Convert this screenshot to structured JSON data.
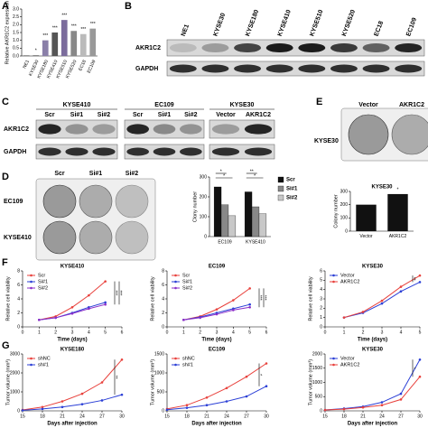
{
  "panel_letters": [
    "A",
    "B",
    "C",
    "D",
    "E",
    "F",
    "G"
  ],
  "blot_b": {
    "lanes": [
      "NE1",
      "KYSE30",
      "KYSE180",
      "KYSE410",
      "KYSE510",
      "KYSE520",
      "EC18",
      "EC109"
    ],
    "rows": [
      "AKR1C2",
      "GAPDH"
    ]
  },
  "blot_c": {
    "groups": [
      {
        "name": "KYSE410",
        "lanes": [
          "Scr",
          "Si#1",
          "Si#2"
        ]
      },
      {
        "name": "EC109",
        "lanes": [
          "Scr",
          "Si#1",
          "Si#2"
        ]
      },
      {
        "name": "KYSE30",
        "lanes": [
          "Vector",
          "AKR1C2"
        ]
      }
    ],
    "rows": [
      "AKR1C2",
      "GAPDH"
    ]
  },
  "colony_d": {
    "columns": [
      "Scr",
      "Si#1",
      "Si#2"
    ],
    "rows": [
      "EC109",
      "KYSE410"
    ]
  },
  "colony_e": {
    "columns": [
      "Vector",
      "AKR1C2"
    ],
    "row": "KYSE30"
  },
  "chart_data": [
    {
      "type": "bar",
      "ylabel": "Relative AKR1C2 expression",
      "categories": [
        "NE1",
        "KYSE30",
        "KYSE180",
        "KYSE410",
        "KYSE510",
        "KYSE520",
        "EC18",
        "EC109"
      ],
      "values": [
        0.02,
        0.05,
        1.0,
        1.5,
        2.3,
        1.6,
        1.4,
        1.75
      ],
      "colors": [
        "#111111",
        "#777777",
        "#8a7fa8",
        "#555555",
        "#7b6c9c",
        "#888888",
        "#bbbbbb",
        "#999999"
      ],
      "annotations": [
        null,
        "*",
        "***",
        "***",
        "***",
        "***",
        "***",
        "***"
      ],
      "ylim": [
        0,
        3
      ],
      "yticks": [
        {
          "value": 0,
          "label": "0.0"
        },
        0.5,
        {
          "value": 1,
          "label": "1.0"
        },
        1.5,
        {
          "value": 2,
          "label": "2.0"
        },
        2.5,
        {
          "value": 3,
          "label": "3.0"
        }
      ]
    },
    {
      "type": "groupbar",
      "ylabel": "Clony number",
      "categories": [
        "EC109",
        "KYSE410"
      ],
      "series": [
        {
          "name": "Scr",
          "color": "#111111",
          "values": [
            250,
            225
          ]
        },
        {
          "name": "Si#1",
          "color": "#888888",
          "values": [
            160,
            150
          ]
        },
        {
          "name": "Si#2",
          "color": "#c8c8c8",
          "values": [
            105,
            115
          ]
        }
      ],
      "annotations": [
        "*",
        "*",
        "**",
        "*"
      ],
      "ylim": [
        0,
        300
      ],
      "yticks": [
        0,
        100,
        200,
        300
      ]
    },
    {
      "type": "bar",
      "title": "KYSE30",
      "ylabel": "Colony number",
      "categories": [
        "Vector",
        "AKR1C2"
      ],
      "values": [
        200,
        280
      ],
      "colors": [
        "#111111",
        "#111111"
      ],
      "annotations": [
        null,
        "*"
      ],
      "ylim": [
        0,
        300
      ],
      "yticks": [
        0,
        100,
        200,
        300
      ]
    },
    {
      "type": "line",
      "title": "KYSE410",
      "xlabel": "Time (days)",
      "ylabel": "Relative cell viability",
      "x": [
        1,
        2,
        3,
        4,
        5
      ],
      "series": [
        {
          "name": "Scr",
          "color": "#e8413c",
          "values": [
            1,
            1.5,
            2.8,
            4.5,
            6.5
          ]
        },
        {
          "name": "Si#1",
          "color": "#2b3fd6",
          "values": [
            1,
            1.3,
            2,
            2.8,
            3.5
          ]
        },
        {
          "name": "Si#2",
          "color": "#8b2fc9",
          "values": [
            1,
            1.3,
            1.9,
            2.6,
            3.2
          ]
        }
      ],
      "annotations": [
        "***",
        "***"
      ],
      "xlim": [
        0,
        6
      ],
      "xticks": [
        0,
        1,
        2,
        3,
        4,
        5,
        6
      ],
      "ylim": [
        0,
        8
      ],
      "yticks": [
        0,
        2,
        4,
        6,
        8
      ]
    },
    {
      "type": "line",
      "title": "EC109",
      "xlabel": "Time (days)",
      "ylabel": "Relative cell viability",
      "x": [
        1,
        2,
        3,
        4,
        5
      ],
      "series": [
        {
          "name": "Scr",
          "color": "#e8413c",
          "values": [
            1,
            1.5,
            2.5,
            3.8,
            5.5
          ]
        },
        {
          "name": "Si#1",
          "color": "#2b3fd6",
          "values": [
            1,
            1.4,
            2,
            2.6,
            3.2
          ]
        },
        {
          "name": "Si#2",
          "color": "#8b2fc9",
          "values": [
            1,
            1.3,
            1.8,
            2.4,
            2.8
          ]
        }
      ],
      "annotations": [
        "***",
        "***"
      ],
      "xlim": [
        0,
        6
      ],
      "xticks": [
        0,
        1,
        2,
        3,
        4,
        5,
        6
      ],
      "ylim": [
        0,
        8
      ],
      "yticks": [
        0,
        2,
        4,
        6,
        8
      ]
    },
    {
      "type": "line",
      "title": "KYSE30",
      "xlabel": "Time (days)",
      "ylabel": "Relative cell viability",
      "x": [
        1,
        2,
        3,
        4,
        5
      ],
      "series": [
        {
          "name": "Vector",
          "color": "#2b3fd6",
          "values": [
            1,
            1.5,
            2.5,
            3.8,
            4.8
          ]
        },
        {
          "name": "AKR1C2",
          "color": "#e8413c",
          "values": [
            1,
            1.6,
            2.8,
            4.3,
            5.5
          ]
        }
      ],
      "annotations": [
        "**"
      ],
      "xlim": [
        0,
        5
      ],
      "xticks": [
        0,
        1,
        2,
        3,
        4,
        5
      ],
      "ylim": [
        0,
        6
      ],
      "yticks": [
        0,
        1,
        2,
        3,
        4,
        5,
        6
      ]
    },
    {
      "type": "line",
      "title": "KYSE180",
      "xlabel": "Days after injection",
      "ylabel": "Tumor volume (mm³)",
      "x": [
        15,
        18,
        21,
        24,
        27,
        30
      ],
      "series": [
        {
          "name": "shNC",
          "color": "#e8413c",
          "values": [
            50,
            200,
            500,
            900,
            1500,
            2700
          ]
        },
        {
          "name": "sh#1",
          "color": "#2b3fd6",
          "values": [
            30,
            100,
            200,
            350,
            550,
            850
          ]
        }
      ],
      "annotations": [
        "**"
      ],
      "xlim": [
        15,
        30
      ],
      "xticks": [
        15,
        18,
        21,
        24,
        27,
        30
      ],
      "ylim": [
        0,
        3000
      ],
      "yticks": [
        0,
        1000,
        2000,
        3000
      ]
    },
    {
      "type": "line",
      "title": "EC109",
      "xlabel": "Days after injection",
      "ylabel": "Tumor volume (mm³)",
      "x": [
        15,
        18,
        21,
        24,
        27,
        30
      ],
      "series": [
        {
          "name": "shNC",
          "color": "#e8413c",
          "values": [
            50,
            150,
            350,
            600,
            900,
            1250
          ]
        },
        {
          "name": "sh#1",
          "color": "#2b3fd6",
          "values": [
            30,
            80,
            150,
            250,
            380,
            650
          ]
        }
      ],
      "annotations": [
        "*"
      ],
      "xlim": [
        15,
        30
      ],
      "xticks": [
        15,
        18,
        21,
        24,
        27,
        30
      ],
      "ylim": [
        0,
        1500
      ],
      "yticks": [
        0,
        500,
        1000,
        1500
      ]
    },
    {
      "type": "line",
      "title": "KYSE30",
      "xlabel": "Days after injection",
      "ylabel": "Tumor volume (mm³)",
      "x": [
        15,
        18,
        21,
        24,
        27,
        30
      ],
      "series": [
        {
          "name": "Vector",
          "color": "#2b3fd6",
          "values": [
            30,
            80,
            150,
            300,
            600,
            1800
          ]
        },
        {
          "name": "AKR1C2",
          "color": "#e8413c",
          "values": [
            30,
            60,
            120,
            200,
            400,
            1200
          ]
        }
      ],
      "annotations": [
        "*"
      ],
      "xlim": [
        15,
        30
      ],
      "xticks": [
        15,
        18,
        21,
        24,
        27,
        30
      ],
      "ylim": [
        0,
        2000
      ],
      "yticks": [
        0,
        500,
        1000,
        1500,
        2000
      ]
    }
  ]
}
